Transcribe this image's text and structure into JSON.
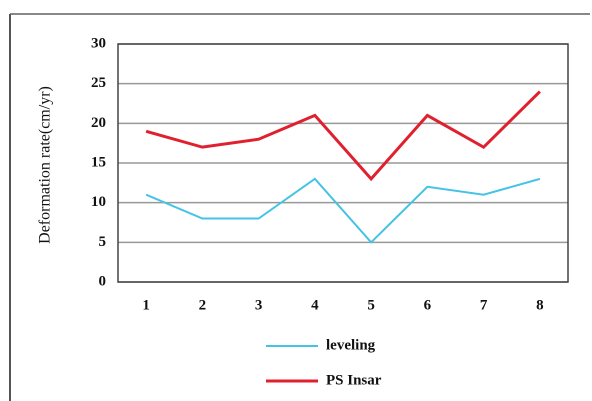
{
  "chart_data": {
    "type": "line",
    "y_label": "Deformation rate(cm/yr)",
    "categories": [
      "1",
      "2",
      "3",
      "4",
      "5",
      "6",
      "7",
      "8"
    ],
    "series": [
      {
        "name": "leveling",
        "color": "#45c3e6",
        "values": [
          11,
          8,
          8,
          13,
          5,
          12,
          11,
          13
        ]
      },
      {
        "name": "PS Insar",
        "color": "#e0202e",
        "values": [
          19,
          17,
          18,
          21,
          13,
          21,
          17,
          24
        ]
      }
    ],
    "ylim": [
      0,
      30
    ],
    "yticks": [
      0,
      5,
      10,
      15,
      20,
      25,
      30
    ],
    "grid": true
  }
}
